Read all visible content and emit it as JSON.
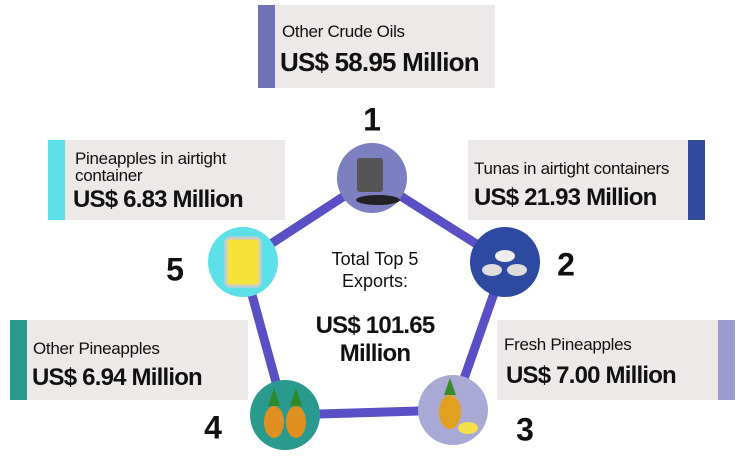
{
  "center": {
    "label": "Total Top 5 Exports:",
    "total": "US$ 101.65 Million"
  },
  "items": [
    {
      "rank": "1",
      "name": "Other Crude Oils",
      "value": "US$ 58.95 Million"
    },
    {
      "rank": "2",
      "name": "Tunas in airtight containers",
      "value": "US$ 21.93 Million"
    },
    {
      "rank": "3",
      "name": "Fresh Pineapples",
      "value": "US$ 7.00 Million"
    },
    {
      "rank": "4",
      "name": "Other Pineapples",
      "value": "US$ 6.94 Million"
    },
    {
      "rank": "5",
      "name": "Pineapples in airtight container",
      "value": "US$ 6.83 Million"
    }
  ]
}
